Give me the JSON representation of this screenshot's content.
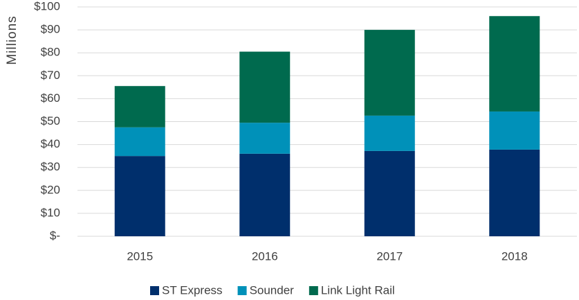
{
  "chart_data": {
    "type": "stacked_bar",
    "y_label": "Millions",
    "categories": [
      "2015",
      "2016",
      "2017",
      "2018"
    ],
    "series": [
      {
        "name": "ST Express",
        "color": "#002f6c",
        "values": [
          35,
          36,
          37.2,
          37.8
        ]
      },
      {
        "name": "Sounder",
        "color": "#0091b9",
        "values": [
          12.5,
          13.5,
          15.4,
          16.6
        ]
      },
      {
        "name": "Link Light Rail",
        "color": "#006a4e",
        "values": [
          18,
          31,
          37.4,
          41.6
        ]
      }
    ],
    "ylim": [
      0,
      100
    ],
    "yticks": [
      {
        "value": 0,
        "label": "$-"
      },
      {
        "value": 10,
        "label": "$10"
      },
      {
        "value": 20,
        "label": "$20"
      },
      {
        "value": 30,
        "label": "$30"
      },
      {
        "value": 40,
        "label": "$40"
      },
      {
        "value": 50,
        "label": "$50"
      },
      {
        "value": 60,
        "label": "$60"
      },
      {
        "value": 70,
        "label": "$70"
      },
      {
        "value": 80,
        "label": "$80"
      },
      {
        "value": 90,
        "label": "$90"
      },
      {
        "value": 100,
        "label": "$100"
      }
    ],
    "grid": true,
    "legend": "bottom"
  }
}
